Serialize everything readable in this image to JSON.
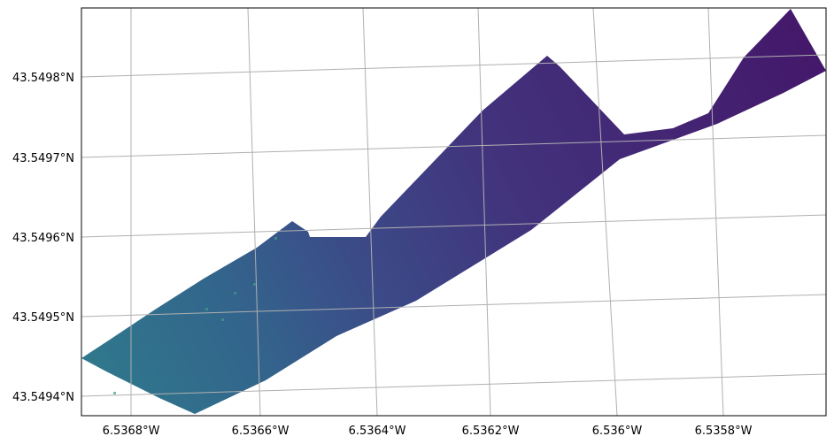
{
  "map": {
    "latitude_labels": [
      "43.5498°N",
      "43.5497°N",
      "43.5496°N",
      "43.5495°N",
      "43.5494°N"
    ],
    "longitude_labels": [
      "6.5368°W",
      "6.5366°W",
      "6.5364°W",
      "6.5362°W",
      "6.536°W",
      "6.5358°W"
    ]
  }
}
